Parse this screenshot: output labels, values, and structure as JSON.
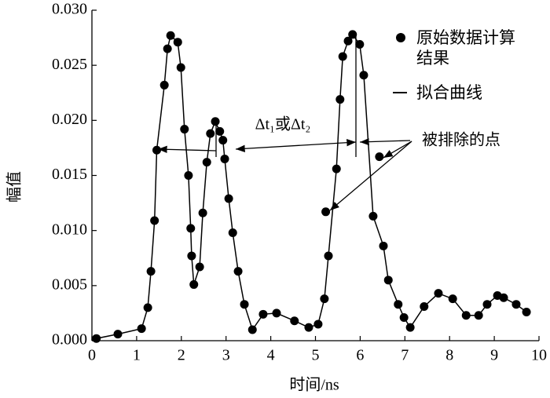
{
  "chart_data": {
    "type": "scatter",
    "x_label": "时间/ns",
    "y_label": "幅值",
    "xlim": [
      0,
      10
    ],
    "xticks": [
      0,
      1,
      2,
      3,
      4,
      5,
      6,
      7,
      8,
      9,
      10
    ],
    "ylim": [
      0,
      0.03
    ],
    "yticks": [
      {
        "value": 0,
        "label": "0.000"
      },
      {
        "value": 0.005,
        "label": "0.005"
      },
      {
        "value": 0.01,
        "label": "0.010"
      },
      {
        "value": 0.015,
        "label": "0.015"
      },
      {
        "value": 0.02,
        "label": "0.020"
      },
      {
        "value": 0.025,
        "label": "0.025"
      },
      {
        "value": 0.03,
        "label": "0.030"
      }
    ],
    "annotations": [
      "Δt₁或Δt₂",
      "被排除的点"
    ],
    "series": [
      {
        "name": "原始数据计算结果",
        "type": "scatter",
        "color": "#000000",
        "x": [
          0.1,
          0.58,
          1.11,
          1.25,
          1.32,
          1.4,
          1.45,
          1.62,
          1.69,
          1.76,
          1.92,
          1.99,
          2.07,
          2.16,
          2.21,
          2.23,
          2.28,
          2.41,
          2.48,
          2.57,
          2.65,
          2.76,
          2.86,
          2.93,
          2.97,
          3.06,
          3.15,
          3.27,
          3.41,
          3.59,
          3.83,
          4.13,
          4.53,
          4.85,
          5.06,
          5.2,
          5.23,
          5.29,
          5.47,
          5.55,
          5.61,
          5.73,
          5.83,
          5.99,
          6.08,
          6.29,
          6.43,
          6.52,
          6.63,
          6.85,
          6.98,
          7.12,
          7.43,
          7.75,
          8.07,
          8.37,
          8.65,
          8.84,
          9.07,
          9.21,
          9.49,
          9.72
        ],
        "values": [
          0.0002,
          0.0006,
          0.0011,
          0.003,
          0.0063,
          0.0109,
          0.0173,
          0.0232,
          0.0265,
          0.0277,
          0.0271,
          0.0248,
          0.0192,
          0.015,
          0.0102,
          0.0077,
          0.0051,
          0.0067,
          0.0116,
          0.0162,
          0.0188,
          0.0199,
          0.019,
          0.0182,
          0.0165,
          0.0129,
          0.0098,
          0.0063,
          0.0033,
          0.001,
          0.0024,
          0.0025,
          0.0018,
          0.0012,
          0.0015,
          0.0038,
          0.0117,
          0.0077,
          0.0156,
          0.0219,
          0.0258,
          0.0272,
          0.0278,
          0.0269,
          0.0241,
          0.0113,
          0.0167,
          0.0086,
          0.0055,
          0.0033,
          0.0021,
          0.0012,
          0.0031,
          0.0043,
          0.0038,
          0.0023,
          0.0023,
          0.0033,
          0.0041,
          0.0039,
          0.0033,
          0.0026
        ]
      },
      {
        "name": "拟合曲线",
        "type": "line",
        "color": "#000000",
        "x": [
          0.1,
          0.58,
          1.11,
          1.25,
          1.32,
          1.4,
          1.45,
          1.62,
          1.69,
          1.76,
          1.92,
          1.99,
          2.07,
          2.16,
          2.21,
          2.23,
          2.28,
          2.41,
          2.48,
          2.57,
          2.65,
          2.76,
          2.86,
          2.93,
          2.97,
          3.06,
          3.15,
          3.27,
          3.41,
          3.59,
          3.83,
          4.13,
          4.53,
          4.85,
          5.06,
          5.2,
          5.29,
          5.47,
          5.55,
          5.61,
          5.73,
          5.83,
          5.99,
          6.08,
          6.29,
          6.52,
          6.63,
          6.85,
          6.98,
          7.12,
          7.43,
          7.75,
          8.07,
          8.37,
          8.65,
          8.84,
          9.07,
          9.21,
          9.49,
          9.72
        ],
        "values": [
          0.0002,
          0.0006,
          0.0011,
          0.003,
          0.0063,
          0.0109,
          0.0173,
          0.0232,
          0.0265,
          0.0277,
          0.0271,
          0.0248,
          0.0192,
          0.015,
          0.0102,
          0.0077,
          0.0051,
          0.0067,
          0.0116,
          0.0162,
          0.0188,
          0.0199,
          0.019,
          0.0182,
          0.0165,
          0.0129,
          0.0098,
          0.0063,
          0.0033,
          0.001,
          0.0024,
          0.0025,
          0.0018,
          0.0012,
          0.0015,
          0.0038,
          0.0077,
          0.0156,
          0.0219,
          0.0258,
          0.0272,
          0.0278,
          0.0269,
          0.0241,
          0.0113,
          0.0086,
          0.0055,
          0.0033,
          0.0021,
          0.0012,
          0.0031,
          0.0043,
          0.0038,
          0.0023,
          0.0023,
          0.0033,
          0.0041,
          0.0039,
          0.0033,
          0.0026
        ]
      }
    ]
  }
}
